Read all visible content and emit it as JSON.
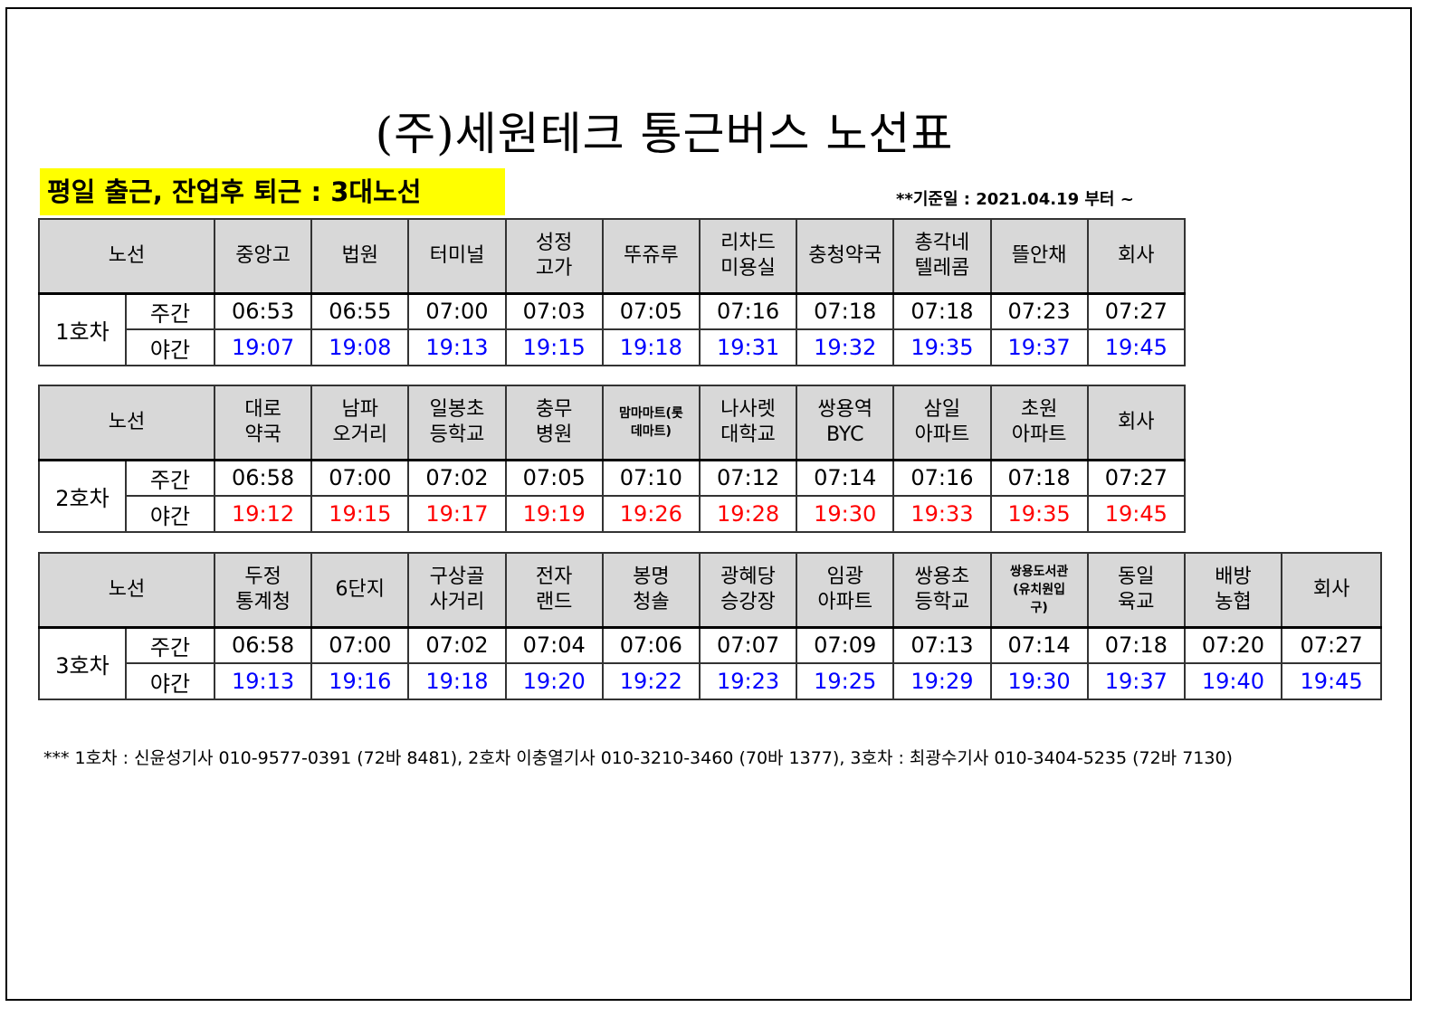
{
  "title": "(주)세원테크 통근버스 노선표",
  "subtitle": "평일 출근, 잔업후 퇴근 : 3대노선",
  "base_date": "**기준일 : 2021.04.19 부터 ~",
  "route_label": "노선",
  "routes": [
    {
      "bus": "1호차",
      "day_label": "주간",
      "night_label": "야간",
      "night_color": "#0000ff",
      "stops": [
        [
          "중앙고"
        ],
        [
          "법원"
        ],
        [
          "터미널"
        ],
        [
          "성정",
          "고가"
        ],
        [
          "뚜쥬루"
        ],
        [
          "리차드",
          "미용실"
        ],
        [
          "충청약국"
        ],
        [
          "총각네",
          "텔레콤"
        ],
        [
          "뜰안채"
        ],
        [
          "회사"
        ]
      ],
      "day": [
        "06:53",
        "06:55",
        "07:00",
        "07:03",
        "07:05",
        "07:16",
        "07:18",
        "07:18",
        "07:23",
        "07:27"
      ],
      "night": [
        "19:07",
        "19:08",
        "19:13",
        "19:15",
        "19:18",
        "19:31",
        "19:32",
        "19:35",
        "19:37",
        "19:45"
      ]
    },
    {
      "bus": "2호차",
      "day_label": "주간",
      "night_label": "야간",
      "night_color": "#ff0000",
      "stops": [
        [
          "대로",
          "약국"
        ],
        [
          "남파",
          "오거리"
        ],
        [
          "일봉초",
          "등학교"
        ],
        [
          "충무",
          "병원"
        ],
        [
          "맘마마트(롯",
          "데마트)"
        ],
        [
          "나사렛",
          "대학교"
        ],
        [
          "쌍용역",
          "BYC"
        ],
        [
          "삼일",
          "아파트"
        ],
        [
          "초원",
          "아파트"
        ],
        [
          "회사"
        ]
      ],
      "day": [
        "06:58",
        "07:00",
        "07:02",
        "07:05",
        "07:10",
        "07:12",
        "07:14",
        "07:16",
        "07:18",
        "07:27"
      ],
      "night": [
        "19:12",
        "19:15",
        "19:17",
        "19:19",
        "19:26",
        "19:28",
        "19:30",
        "19:33",
        "19:35",
        "19:45"
      ]
    },
    {
      "bus": "3호차",
      "day_label": "주간",
      "night_label": "야간",
      "night_color": "#0000ff",
      "stops": [
        [
          "두정",
          "통계청"
        ],
        [
          "6단지"
        ],
        [
          "구상골",
          "사거리"
        ],
        [
          "전자",
          "랜드"
        ],
        [
          "봉명",
          "청솔"
        ],
        [
          "광혜당",
          "승강장"
        ],
        [
          "임광",
          "아파트"
        ],
        [
          "쌍용초",
          "등학교"
        ],
        [
          "쌍용도서관",
          "(유치원입",
          "구)"
        ],
        [
          "동일",
          "육교"
        ],
        [
          "배방",
          "농협"
        ],
        [
          "회사"
        ]
      ],
      "day": [
        "06:58",
        "07:00",
        "07:02",
        "07:04",
        "07:06",
        "07:07",
        "07:09",
        "07:13",
        "07:14",
        "07:18",
        "07:20",
        "07:27"
      ],
      "night": [
        "19:13",
        "19:16",
        "19:18",
        "19:20",
        "19:22",
        "19:23",
        "19:25",
        "19:29",
        "19:30",
        "19:37",
        "19:40",
        "19:45"
      ]
    }
  ],
  "footer": "*** 1호차 : 신윤성기사 010-9577-0391 (72바 8481),  2호차 이충열기사 010-3210-3460 (70바 1377),  3호차 : 최광수기사 010-3404-5235 (72바 7130)"
}
